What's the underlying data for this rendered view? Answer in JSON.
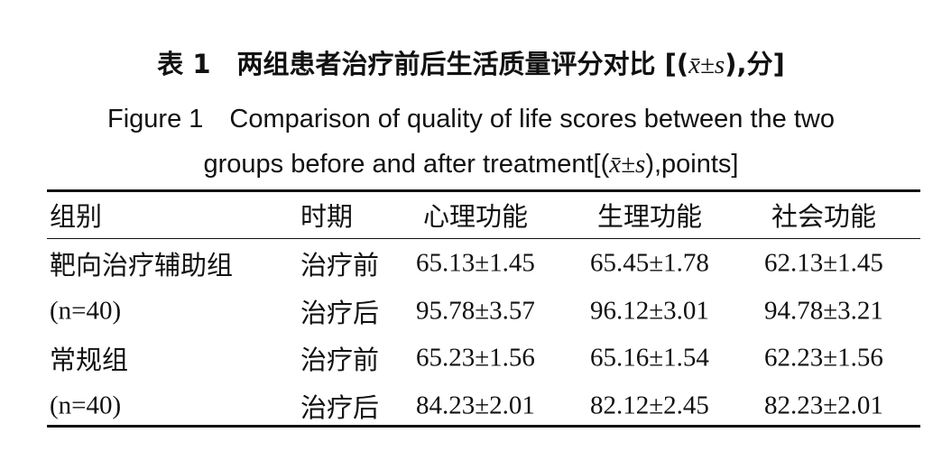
{
  "title": {
    "zh": {
      "prefix": "表 1　两组患者治疗前后生活质量评分对比 [(",
      "formula": "x̄±s",
      "suffix": "),分]"
    },
    "en": {
      "line1": "Figure 1　Comparison of quality of life scores between the two",
      "line2_prefix": "groups before and after treatment[(",
      "formula": "x̄±s",
      "line2_suffix": "),points]"
    }
  },
  "table": {
    "header": [
      "组别",
      "时期",
      "心理功能",
      "生理功能",
      "社会功能"
    ],
    "rows": [
      [
        "靶向治疗辅助组",
        "治疗前",
        "65.13±1.45",
        "65.45±1.78",
        "62.13±1.45"
      ],
      [
        "(n=40)",
        "治疗后",
        "95.78±3.57",
        "96.12±3.01",
        "94.78±3.21"
      ],
      [
        "常规组",
        "治疗前",
        "65.23±1.56",
        "65.16±1.54",
        "62.23±1.56"
      ],
      [
        "(n=40)",
        "治疗后",
        "84.23±2.01",
        "82.12±2.45",
        "82.23±2.01"
      ]
    ]
  }
}
